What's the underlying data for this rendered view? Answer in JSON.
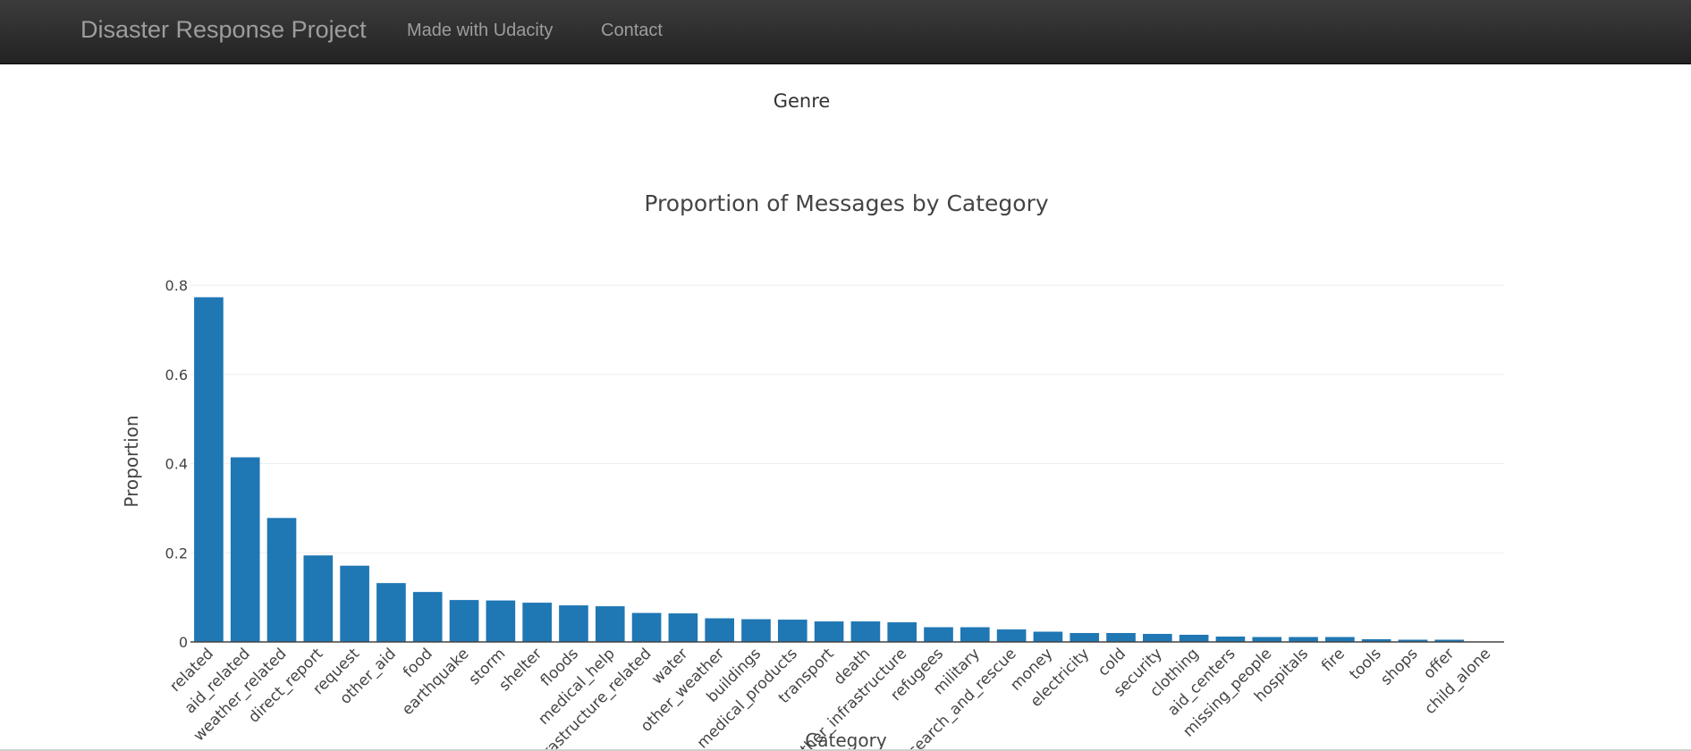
{
  "navbar": {
    "brand": "Disaster Response Project",
    "links": [
      "Made with Udacity",
      "Contact"
    ]
  },
  "section_heading": "Genre",
  "colors": {
    "bar": "#1f77b4",
    "grid": "#eeeeee",
    "axis": "#444444",
    "navbar": "#222222"
  },
  "chart_data": {
    "type": "bar",
    "title": "Proportion of Messages by Category",
    "xlabel": "Category",
    "ylabel": "Proportion",
    "ylim": [
      0,
      0.8
    ],
    "yticks": [
      0,
      0.2,
      0.4,
      0.6,
      0.8
    ],
    "ytick_labels": [
      "0",
      "0.2",
      "0.4",
      "0.6",
      "0.8"
    ],
    "grid": true,
    "categories": [
      "related",
      "aid_related",
      "weather_related",
      "direct_report",
      "request",
      "other_aid",
      "food",
      "earthquake",
      "storm",
      "shelter",
      "floods",
      "medical_help",
      "infrastructure_related",
      "water",
      "other_weather",
      "buildings",
      "medical_products",
      "transport",
      "death",
      "other_infrastructure",
      "refugees",
      "military",
      "search_and_rescue",
      "money",
      "electricity",
      "cold",
      "security",
      "clothing",
      "aid_centers",
      "missing_people",
      "hospitals",
      "fire",
      "tools",
      "shops",
      "offer",
      "child_alone"
    ],
    "values": [
      0.773,
      0.414,
      0.278,
      0.194,
      0.171,
      0.132,
      0.112,
      0.094,
      0.093,
      0.088,
      0.082,
      0.08,
      0.065,
      0.064,
      0.053,
      0.051,
      0.05,
      0.046,
      0.046,
      0.044,
      0.033,
      0.033,
      0.028,
      0.023,
      0.02,
      0.02,
      0.018,
      0.016,
      0.012,
      0.011,
      0.011,
      0.011,
      0.006,
      0.005,
      0.005,
      0.0
    ]
  }
}
